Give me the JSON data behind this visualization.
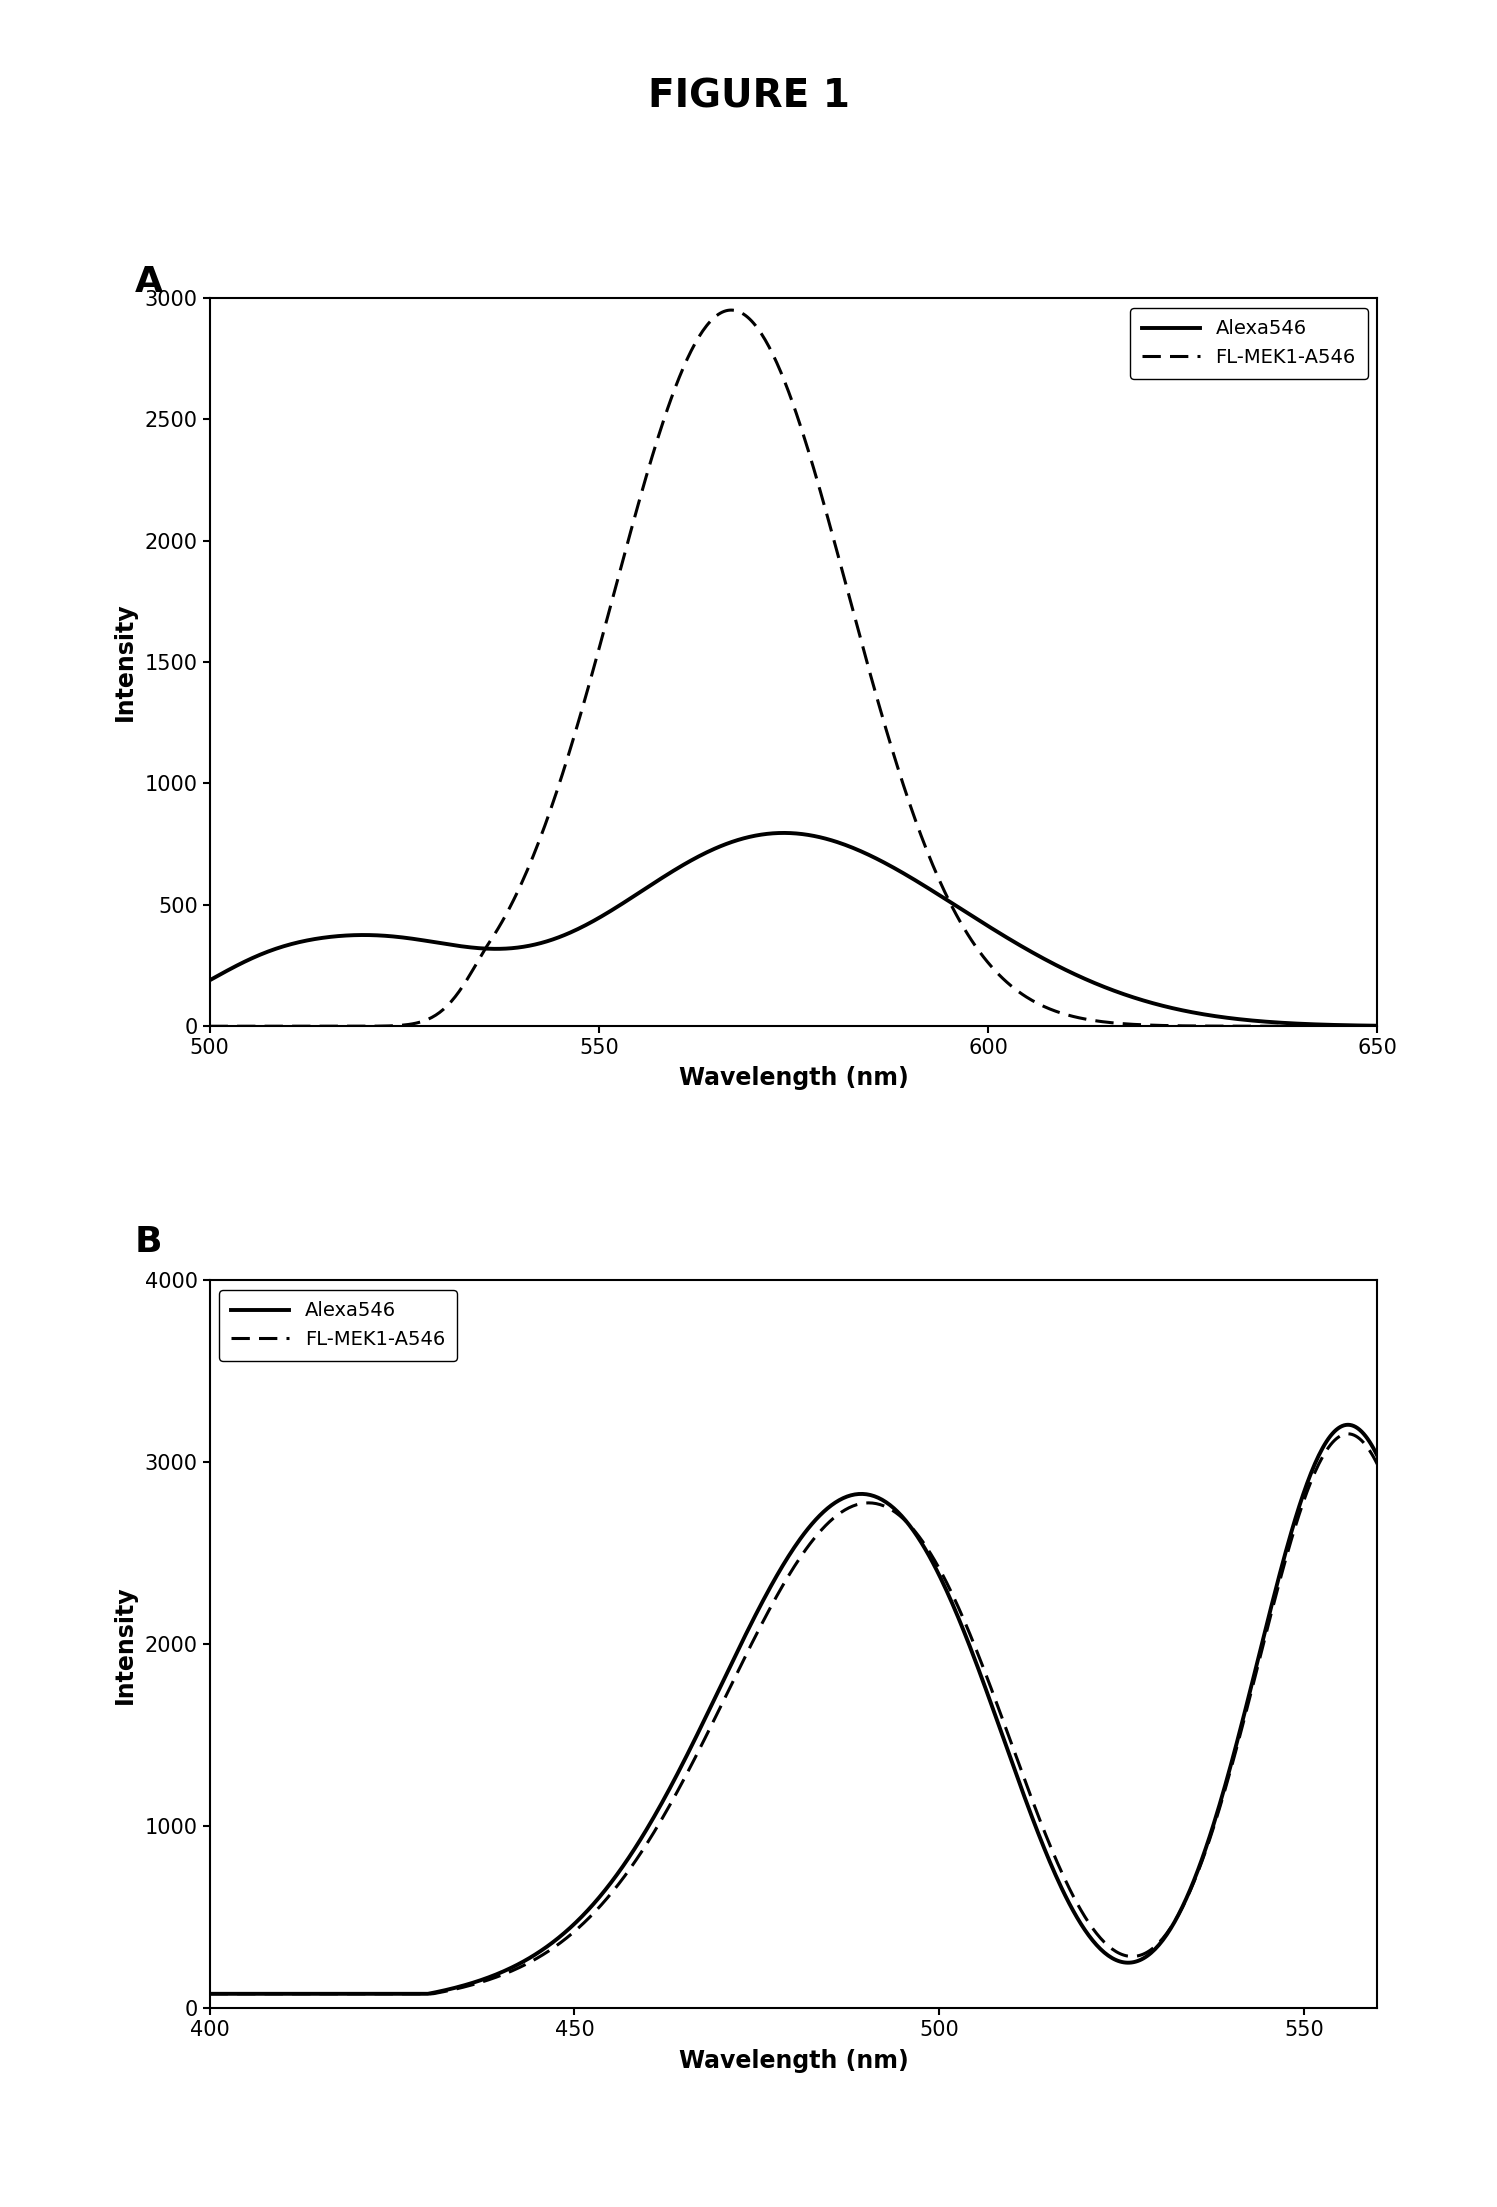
{
  "title": "FIGURE 1",
  "panel_A": {
    "label": "A",
    "xlabel": "Wavelength (nm)",
    "ylabel": "Intensity",
    "xlim": [
      500,
      650
    ],
    "ylim": [
      0,
      3000
    ],
    "yticks": [
      0,
      500,
      1000,
      1500,
      2000,
      2500,
      3000
    ],
    "xticks": [
      500,
      550,
      600,
      650
    ],
    "legend": [
      "Alexa546",
      "FL-MEK1-A546"
    ]
  },
  "panel_B": {
    "label": "B",
    "xlabel": "Wavelength (nm)",
    "ylabel": "Intensity",
    "xlim": [
      400,
      560
    ],
    "ylim": [
      0,
      4000
    ],
    "yticks": [
      0,
      1000,
      2000,
      3000,
      4000
    ],
    "xticks": [
      400,
      450,
      500,
      550
    ],
    "legend": [
      "Alexa546",
      "FL-MEK1-A546"
    ]
  }
}
